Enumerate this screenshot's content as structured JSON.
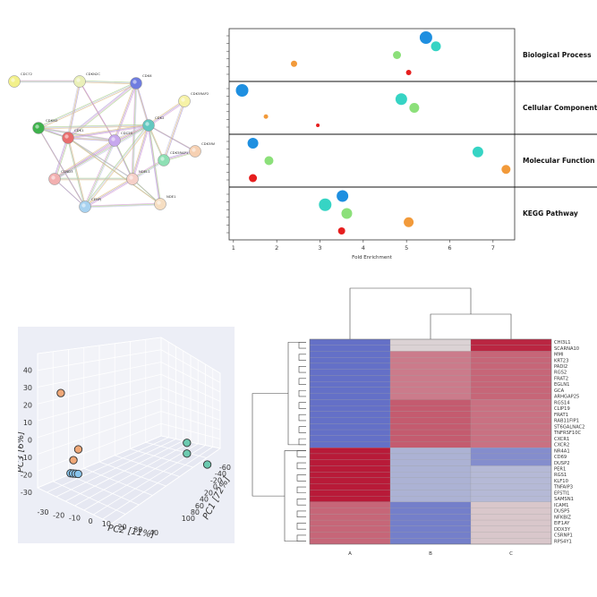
{
  "ppi_network": {
    "nodes": [
      {
        "name": "CDC72",
        "color": "#f2f08a"
      },
      {
        "name": "CDKN2C",
        "color": "#eaf0b8"
      },
      {
        "name": "CDK6",
        "color": "#6f7de0"
      },
      {
        "name": "CDK5RAP2",
        "color": "#f6f2a6"
      },
      {
        "name": "CDKN3",
        "color": "#3fb24c"
      },
      {
        "name": "CDK1",
        "color": "#e86e6e"
      },
      {
        "name": "CDC20",
        "color": "#c7a8ee"
      },
      {
        "name": "CDK2",
        "color": "#62c8c0"
      },
      {
        "name": "CDK5RAP1",
        "color": "#8ee0b4"
      },
      {
        "name": "CDK5RAP3",
        "color": "#f6d0b2"
      },
      {
        "name": "CCND3",
        "color": "#f2b0b0"
      },
      {
        "name": "NDEL1",
        "color": "#f6d0c8"
      },
      {
        "name": "CENPJ",
        "color": "#a8d2f0"
      },
      {
        "name": "NDE1",
        "color": "#f6dec2"
      }
    ]
  },
  "chart_data": [
    {
      "type": "scatter",
      "xlabel": "Fold Enrichment",
      "xlim": [
        0.9,
        7.5
      ],
      "xticks": [
        1,
        2,
        3,
        4,
        5,
        6,
        7
      ],
      "groups": [
        {
          "name": "Biological Process",
          "points": [
            {
              "x": 5.45,
              "size": 7,
              "color": "#1e8fe0"
            },
            {
              "x": 5.68,
              "size": 5.5,
              "color": "#36d4c4"
            },
            {
              "x": 4.78,
              "size": 4.5,
              "color": "#8ce07a"
            },
            {
              "x": 2.4,
              "size": 3.5,
              "color": "#f29a3a"
            },
            {
              "x": 5.05,
              "size": 3,
              "color": "#e61e1e"
            }
          ]
        },
        {
          "name": "Cellular Component",
          "points": [
            {
              "x": 1.2,
              "size": 7,
              "color": "#1e8fe0"
            },
            {
              "x": 4.88,
              "size": 6.5,
              "color": "#36d4c4"
            },
            {
              "x": 5.18,
              "size": 5.5,
              "color": "#8ce07a"
            },
            {
              "x": 1.75,
              "size": 2.5,
              "color": "#f29a3a"
            },
            {
              "x": 2.95,
              "size": 2,
              "color": "#e61e1e"
            }
          ]
        },
        {
          "name": "Molecular Function",
          "points": [
            {
              "x": 1.45,
              "size": 6,
              "color": "#1e8fe0"
            },
            {
              "x": 6.65,
              "size": 6,
              "color": "#36d4c4"
            },
            {
              "x": 1.82,
              "size": 5,
              "color": "#8ce07a"
            },
            {
              "x": 7.3,
              "size": 5,
              "color": "#f29a3a"
            },
            {
              "x": 1.45,
              "size": 4.5,
              "color": "#e61e1e"
            }
          ]
        },
        {
          "name": "KEGG Pathway",
          "points": [
            {
              "x": 3.52,
              "size": 6.5,
              "color": "#1e8fe0"
            },
            {
              "x": 3.12,
              "size": 7,
              "color": "#36d4c4"
            },
            {
              "x": 3.62,
              "size": 6,
              "color": "#8ce07a"
            },
            {
              "x": 5.05,
              "size": 5.5,
              "color": "#f29a3a"
            },
            {
              "x": 3.5,
              "size": 4,
              "color": "#e61e1e"
            }
          ]
        }
      ]
    },
    {
      "type": "scatter",
      "subtype": "3d-pca",
      "xlabel": "PC2 [11%]",
      "ylabel": "PC1 [72%]",
      "zlabel": "PC3 [6%]",
      "xticks": [
        "-30",
        "-20",
        "-10",
        "0",
        "10",
        "20",
        "30",
        "40"
      ],
      "yticks": [
        "-60",
        "-40",
        "-20",
        "0",
        "20",
        "40",
        "60",
        "80",
        "100"
      ],
      "zticks": [
        "-30",
        "-20",
        "-10",
        "0",
        "10",
        "20",
        "30",
        "40"
      ],
      "groups": [
        {
          "color": "#f0a878",
          "points": [
            {
              "pc2": -3,
              "pc1": -55,
              "pc3": 40
            },
            {
              "pc2": -1,
              "pc1": -35,
              "pc3": 8
            },
            {
              "pc2": -2,
              "pc1": -40,
              "pc3": 2
            }
          ]
        },
        {
          "color": "#6ccab0",
          "points": [
            {
              "pc2": 35,
              "pc1": 60,
              "pc3": 15
            },
            {
              "pc2": 35,
              "pc1": 60,
              "pc3": 9
            },
            {
              "pc2": 40,
              "pc1": 80,
              "pc3": 3
            }
          ]
        },
        {
          "color": "#88c4ec",
          "points": [
            {
              "pc2": -5,
              "pc1": -40,
              "pc3": -6
            },
            {
              "pc2": -4,
              "pc1": -38,
              "pc3": -6
            },
            {
              "pc2": -3,
              "pc1": -36,
              "pc3": -6
            },
            {
              "pc2": -2,
              "pc1": -34,
              "pc3": -6
            }
          ]
        }
      ]
    },
    {
      "type": "heatmap",
      "columns": [
        "A",
        "B",
        "C"
      ],
      "rows": [
        "CHI3L1",
        "SCARNA10",
        "MMI",
        "KRT23",
        "PADI2",
        "RGS2",
        "FRAT2",
        "EGLN1",
        "GCA",
        "ARHGAP25",
        "RGS14",
        "CLIP19",
        "FRAT1",
        "RAB11FIP1",
        "ST6GALNAC2",
        "TNFRSF10C",
        "CXCR1",
        "CXCR2",
        "NR4A1",
        "CD69",
        "DUSP2",
        "PER1",
        "RGS1",
        "KLF10",
        "TNFAIP3",
        "EFSTI1",
        "SAMSN1",
        "ICAM1",
        "DUSP5",
        "NFKBIZ",
        "EIF1AY",
        "DDX3Y",
        "CSRNP1",
        "RPS4Y1"
      ],
      "values": [
        [
          -0.75,
          0.05,
          0.85
        ],
        [
          -0.75,
          0.05,
          0.85
        ],
        [
          -0.75,
          0.45,
          0.55
        ],
        [
          -0.75,
          0.45,
          0.55
        ],
        [
          -0.75,
          0.45,
          0.55
        ],
        [
          -0.75,
          0.45,
          0.55
        ],
        [
          -0.75,
          0.45,
          0.55
        ],
        [
          -0.75,
          0.45,
          0.55
        ],
        [
          -0.75,
          0.45,
          0.55
        ],
        [
          -0.75,
          0.45,
          0.55
        ],
        [
          -0.75,
          0.6,
          0.5
        ],
        [
          -0.75,
          0.6,
          0.5
        ],
        [
          -0.75,
          0.6,
          0.5
        ],
        [
          -0.75,
          0.6,
          0.5
        ],
        [
          -0.75,
          0.6,
          0.5
        ],
        [
          -0.75,
          0.6,
          0.5
        ],
        [
          -0.75,
          0.6,
          0.5
        ],
        [
          -0.75,
          0.6,
          0.5
        ],
        [
          0.9,
          -0.3,
          -0.55
        ],
        [
          0.9,
          -0.3,
          -0.55
        ],
        [
          0.9,
          -0.3,
          -0.55
        ],
        [
          0.9,
          -0.3,
          -0.25
        ],
        [
          0.9,
          -0.3,
          -0.25
        ],
        [
          0.9,
          -0.3,
          -0.25
        ],
        [
          0.9,
          -0.3,
          -0.25
        ],
        [
          0.9,
          -0.3,
          -0.25
        ],
        [
          0.9,
          -0.3,
          -0.25
        ],
        [
          0.55,
          -0.65,
          0.1
        ],
        [
          0.55,
          -0.65,
          0.1
        ],
        [
          0.55,
          -0.65,
          0.1
        ],
        [
          0.55,
          -0.65,
          0.1
        ],
        [
          0.55,
          -0.65,
          0.1
        ],
        [
          0.55,
          -0.65,
          0.1
        ],
        [
          0.55,
          -0.65,
          0.1
        ]
      ]
    }
  ]
}
